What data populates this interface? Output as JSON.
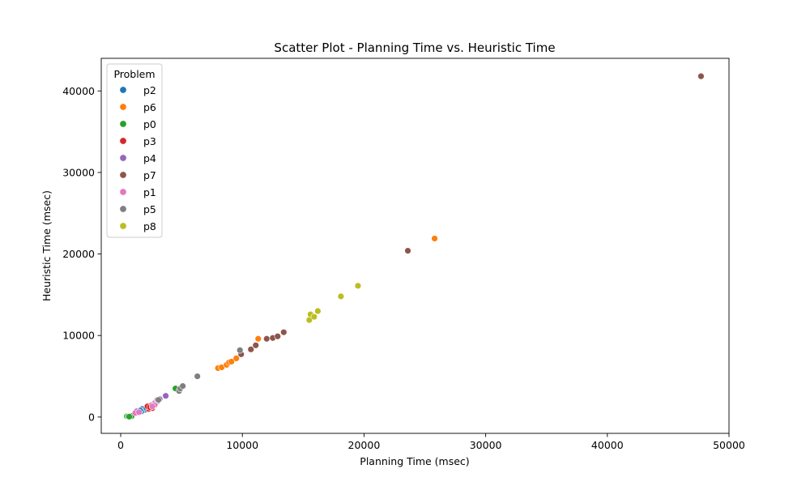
{
  "chart_data": {
    "type": "scatter",
    "title": "Scatter Plot - Planning Time vs. Heuristic Time",
    "xlabel": "Planning Time (msec)",
    "ylabel": "Heuristic Time (msec)",
    "xlim": [
      -1600,
      50000
    ],
    "ylim": [
      -2000,
      44000
    ],
    "xticks": [
      0,
      10000,
      20000,
      30000,
      40000,
      50000
    ],
    "yticks": [
      0,
      10000,
      20000,
      30000,
      40000
    ],
    "grid": false,
    "legend": {
      "title": "Problem",
      "placement": "top-left"
    },
    "series": [
      {
        "name": "p2",
        "color": "#1f77b4",
        "points": [
          [
            1800,
            1000
          ],
          [
            2000,
            900
          ],
          [
            1700,
            700
          ],
          [
            2100,
            1100
          ],
          [
            1600,
            800
          ]
        ]
      },
      {
        "name": "p6",
        "color": "#ff7f0e",
        "points": [
          [
            8000,
            6000
          ],
          [
            8300,
            6100
          ],
          [
            8700,
            6400
          ],
          [
            8900,
            6700
          ],
          [
            9100,
            6800
          ],
          [
            9500,
            7200
          ],
          [
            11300,
            9600
          ],
          [
            25800,
            21900
          ]
        ]
      },
      {
        "name": "p0",
        "color": "#2ca02c",
        "points": [
          [
            500,
            100
          ],
          [
            600,
            80
          ],
          [
            900,
            120
          ],
          [
            4500,
            3500
          ],
          [
            700,
            50
          ]
        ]
      },
      {
        "name": "p3",
        "color": "#d62728",
        "points": [
          [
            2300,
            1000
          ],
          [
            2500,
            1400
          ],
          [
            2600,
            1100
          ],
          [
            2200,
            1300
          ],
          [
            2400,
            1200
          ]
        ]
      },
      {
        "name": "p4",
        "color": "#9467bd",
        "points": [
          [
            1300,
            700
          ],
          [
            3000,
            1900
          ],
          [
            3200,
            2200
          ],
          [
            3700,
            2600
          ],
          [
            2800,
            1700
          ]
        ]
      },
      {
        "name": "p7",
        "color": "#8c564b",
        "points": [
          [
            9900,
            7700
          ],
          [
            10700,
            8300
          ],
          [
            11100,
            8800
          ],
          [
            12000,
            9600
          ],
          [
            12500,
            9700
          ],
          [
            12900,
            9900
          ],
          [
            13400,
            10400
          ],
          [
            23600,
            20400
          ],
          [
            47700,
            41800
          ]
        ]
      },
      {
        "name": "p1",
        "color": "#e377c2",
        "points": [
          [
            1200,
            500
          ],
          [
            2800,
            1500
          ],
          [
            3000,
            2100
          ],
          [
            1500,
            600
          ],
          [
            2600,
            1300
          ]
        ]
      },
      {
        "name": "p5",
        "color": "#7f7f7f",
        "points": [
          [
            3100,
            2100
          ],
          [
            4800,
            3200
          ],
          [
            4900,
            3500
          ],
          [
            5100,
            3800
          ],
          [
            6300,
            5000
          ],
          [
            9800,
            8200
          ]
        ]
      },
      {
        "name": "p8",
        "color": "#bcbd22",
        "points": [
          [
            15500,
            11900
          ],
          [
            15600,
            12600
          ],
          [
            15900,
            12300
          ],
          [
            16200,
            13000
          ],
          [
            18100,
            14800
          ],
          [
            19500,
            16100
          ]
        ]
      }
    ]
  }
}
